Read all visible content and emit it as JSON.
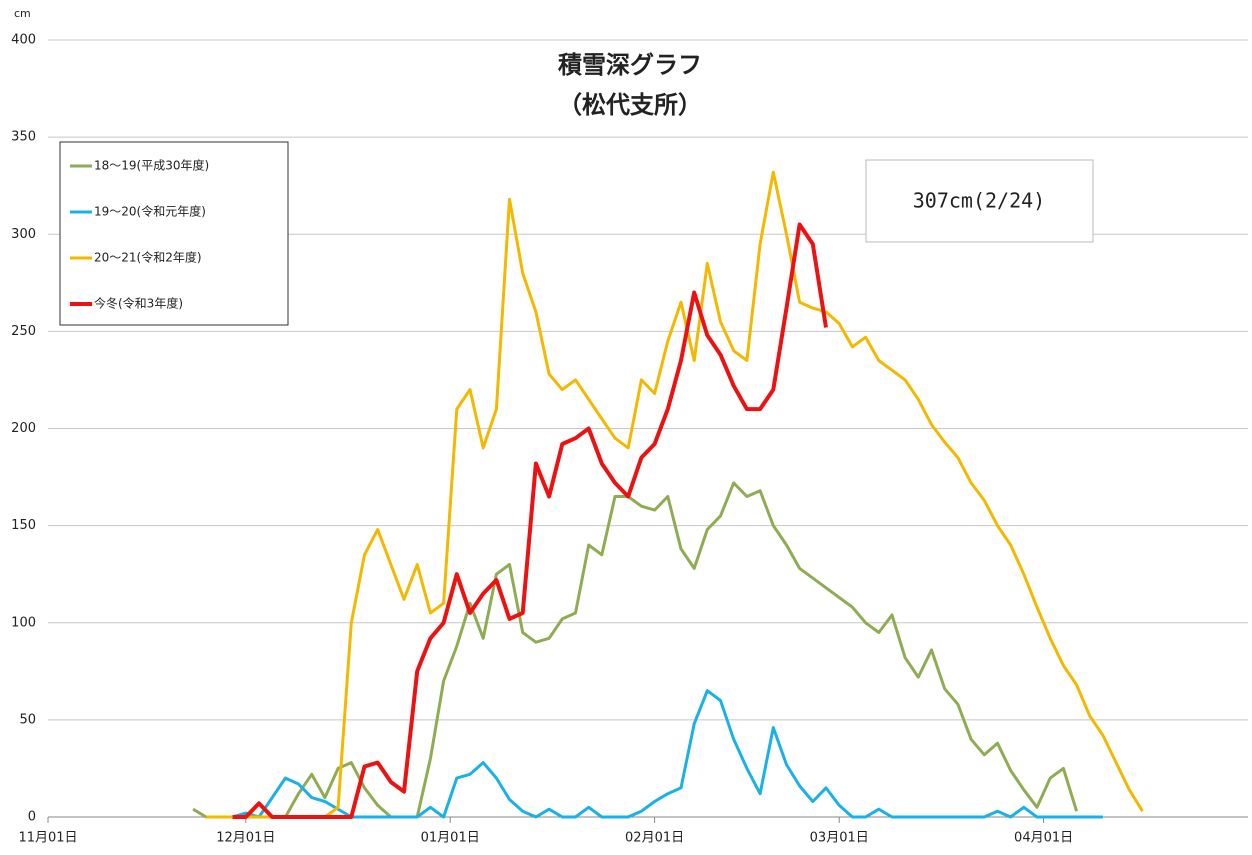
{
  "chart_data": {
    "type": "line",
    "title": "積雪深グラフ",
    "subtitle": "（松代支所）",
    "y_label": "cm",
    "annotation": "307cm(2/24)",
    "x": [
      0,
      2,
      4,
      6,
      8,
      10,
      12,
      14,
      16,
      18,
      20,
      22,
      24,
      26,
      28,
      30,
      32,
      34,
      36,
      38,
      40,
      42,
      44,
      46,
      48,
      50,
      52,
      54,
      56,
      58,
      60,
      62,
      64,
      66,
      68,
      70,
      72,
      74,
      76,
      78,
      80,
      82,
      84,
      86,
      88,
      90,
      92,
      94,
      96,
      98,
      100,
      102,
      104,
      106,
      108,
      110,
      112,
      114,
      116,
      118,
      120,
      122,
      124,
      126,
      128,
      130,
      132,
      134,
      136,
      138,
      140,
      142,
      144,
      146,
      148,
      150,
      152,
      154,
      156,
      158,
      160,
      162,
      164,
      166,
      168,
      170,
      172,
      174,
      176,
      178,
      180
    ],
    "xlim": [
      0,
      182
    ],
    "xticks": [
      {
        "value": 0,
        "label": "11月01日"
      },
      {
        "value": 30,
        "label": "12月01日"
      },
      {
        "value": 61,
        "label": "01月01日"
      },
      {
        "value": 92,
        "label": "02月01日"
      },
      {
        "value": 120,
        "label": "03月01日"
      },
      {
        "value": 151,
        "label": "04月01日"
      }
    ],
    "ylim": [
      0,
      400
    ],
    "yticks": [
      0,
      50,
      100,
      150,
      200,
      250,
      300,
      350,
      400
    ],
    "grid": true,
    "legend": "upper left",
    "series": [
      {
        "name": "18～19(平成30年度)",
        "color": "#8fac52",
        "width": 3,
        "values": [
          null,
          null,
          null,
          null,
          null,
          null,
          null,
          null,
          null,
          null,
          null,
          4,
          0,
          0,
          0,
          0,
          0,
          0,
          0,
          12,
          22,
          10,
          25,
          28,
          15,
          6,
          0,
          0,
          0,
          30,
          70,
          88,
          110,
          92,
          125,
          130,
          95,
          90,
          92,
          102,
          105,
          140,
          135,
          165,
          165,
          160,
          158,
          165,
          138,
          128,
          148,
          155,
          172,
          165,
          168,
          150,
          140,
          128,
          123,
          118,
          113,
          108,
          100,
          95,
          104,
          82,
          72,
          86,
          66,
          58,
          40,
          32,
          38,
          24,
          14,
          5,
          20,
          25,
          3,
          null,
          null,
          null,
          null,
          null,
          null,
          null,
          null,
          null,
          null,
          null,
          null
        ]
      },
      {
        "name": "19～20(令和元年度)",
        "color": "#1ab0e8",
        "width": 3,
        "values": [
          null,
          null,
          null,
          null,
          null,
          null,
          null,
          null,
          null,
          null,
          null,
          null,
          null,
          null,
          0,
          2,
          0,
          10,
          20,
          17,
          10,
          8,
          4,
          0,
          0,
          0,
          0,
          0,
          0,
          5,
          0,
          20,
          22,
          28,
          20,
          9,
          3,
          0,
          4,
          0,
          0,
          5,
          0,
          0,
          0,
          3,
          8,
          12,
          15,
          48,
          65,
          60,
          40,
          25,
          12,
          46,
          27,
          16,
          8,
          15,
          6,
          0,
          0,
          4,
          0,
          0,
          0,
          0,
          0,
          0,
          0,
          0,
          3,
          0,
          5,
          0,
          0,
          0,
          0,
          0,
          0,
          null,
          null,
          null,
          null,
          null,
          null,
          null,
          null,
          null,
          null
        ]
      },
      {
        "name": "20～21(令和2年度)",
        "color": "#f5b800",
        "width": 3,
        "values": [
          null,
          null,
          null,
          null,
          null,
          null,
          null,
          null,
          null,
          null,
          null,
          null,
          0,
          0,
          0,
          0,
          0,
          0,
          0,
          0,
          0,
          0,
          5,
          100,
          135,
          148,
          130,
          112,
          130,
          105,
          110,
          210,
          220,
          190,
          210,
          318,
          280,
          260,
          228,
          220,
          225,
          215,
          205,
          195,
          190,
          225,
          218,
          245,
          265,
          235,
          285,
          255,
          240,
          235,
          295,
          332,
          300,
          265,
          262,
          260,
          254,
          242,
          247,
          235,
          230,
          225,
          215,
          202,
          193,
          185,
          172,
          163,
          150,
          140,
          125,
          108,
          92,
          78,
          68,
          52,
          42,
          28,
          14,
          3,
          null,
          null,
          null,
          null,
          null,
          null,
          null
        ]
      },
      {
        "name": "今冬(令和3年度)",
        "color": "#ee1111",
        "width": 4,
        "values": [
          null,
          null,
          null,
          null,
          null,
          null,
          null,
          null,
          null,
          null,
          null,
          null,
          null,
          null,
          0,
          0,
          7,
          0,
          0,
          0,
          0,
          0,
          0,
          0,
          26,
          28,
          18,
          13,
          75,
          92,
          100,
          125,
          105,
          115,
          122,
          102,
          105,
          182,
          165,
          192,
          195,
          200,
          182,
          172,
          165,
          185,
          192,
          210,
          235,
          270,
          248,
          238,
          222,
          210,
          210,
          220,
          262,
          305,
          295,
          252,
          null,
          null,
          null,
          null,
          null,
          null,
          null,
          null,
          null,
          null,
          null,
          null,
          null,
          null,
          null,
          null,
          null,
          null,
          null,
          null,
          null,
          null,
          null,
          null,
          null,
          null,
          null,
          null,
          null,
          null,
          null
        ]
      }
    ]
  }
}
